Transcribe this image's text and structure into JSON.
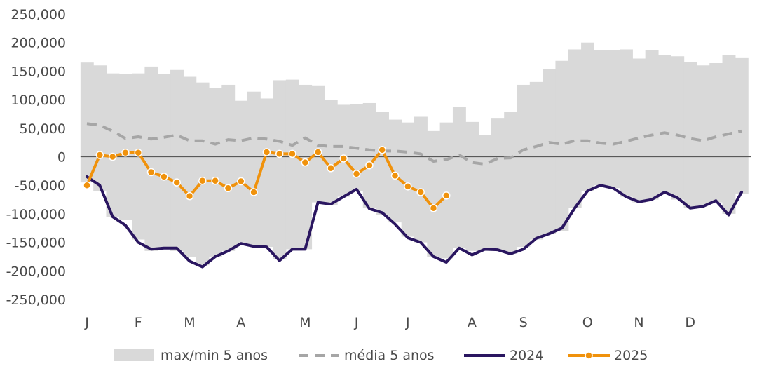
{
  "chart_data": {
    "type": "line",
    "ylim": [
      -250000,
      250000
    ],
    "yticks": [
      250000,
      200000,
      150000,
      100000,
      50000,
      0,
      -50000,
      -100000,
      -150000,
      -200000,
      -250000
    ],
    "ytick_labels": [
      "250,000",
      "200,000",
      "150,000",
      "100,000",
      "50,000",
      "0",
      "-50,000",
      "-100,000",
      "-150,000",
      "-200,000",
      "-250,000"
    ],
    "x_range": [
      1,
      52
    ],
    "x_ticks": [
      {
        "week": 1,
        "label": "J"
      },
      {
        "week": 5,
        "label": "F"
      },
      {
        "week": 9,
        "label": "M"
      },
      {
        "week": 13,
        "label": "A"
      },
      {
        "week": 18,
        "label": "M"
      },
      {
        "week": 22,
        "label": "J"
      },
      {
        "week": 26,
        "label": "J"
      },
      {
        "week": 31,
        "label": "A"
      },
      {
        "week": 35,
        "label": "S"
      },
      {
        "week": 40,
        "label": "O"
      },
      {
        "week": 44,
        "label": "N"
      },
      {
        "week": 48,
        "label": "D"
      }
    ],
    "zero_line": true,
    "legend_position": "bottom",
    "series": [
      {
        "name": "max/min 5 anos",
        "kind": "band",
        "color": "#d9d9d9",
        "max": [
          165000,
          160000,
          146000,
          145000,
          146000,
          158000,
          145000,
          152000,
          140000,
          130000,
          120000,
          126000,
          98000,
          114000,
          102000,
          134000,
          135000,
          126000,
          125000,
          100000,
          91000,
          92000,
          94000,
          78000,
          65000,
          60000,
          70000,
          45000,
          60000,
          87000,
          61000,
          38000,
          68000,
          78000,
          126000,
          131000,
          153000,
          168000,
          188000,
          200000,
          187000,
          187000,
          188000,
          172000,
          187000,
          178000,
          176000,
          166000,
          160000,
          164000,
          178000,
          174000
        ],
        "min": [
          -45000,
          -60000,
          -105000,
          -110000,
          -145000,
          -165000,
          -160000,
          -165000,
          -175000,
          -190000,
          -175000,
          -165000,
          -155000,
          -155000,
          -158000,
          -180000,
          -162000,
          -162000,
          -80000,
          -85000,
          -70000,
          -60000,
          -90000,
          -102000,
          -115000,
          -140000,
          -150000,
          -175000,
          -178000,
          -160000,
          -165000,
          -165000,
          -165000,
          -170000,
          -158000,
          -145000,
          -135000,
          -130000,
          -90000,
          -60000,
          -50000,
          -55000,
          -70000,
          -80000,
          -75000,
          -65000,
          -75000,
          -90000,
          -85000,
          -80000,
          -100000,
          -65000
        ]
      },
      {
        "name": "média 5 anos",
        "kind": "dashed",
        "color": "#a6a6a6",
        "values": [
          58000,
          55000,
          45000,
          32000,
          35000,
          31000,
          34000,
          38000,
          28000,
          28000,
          22000,
          30000,
          28000,
          33000,
          31000,
          27000,
          20000,
          33000,
          20000,
          18000,
          18000,
          15000,
          12000,
          10000,
          10000,
          8000,
          5000,
          -8000,
          -5000,
          3000,
          -10000,
          -13000,
          -3000,
          -2000,
          12000,
          18000,
          25000,
          22000,
          28000,
          28000,
          24000,
          22000,
          27000,
          33000,
          38000,
          42000,
          38000,
          32000,
          28000,
          35000,
          40000,
          45000
        ]
      },
      {
        "name": "2024",
        "kind": "line",
        "color": "#2a1660",
        "values": [
          -35000,
          -50000,
          -105000,
          -120000,
          -150000,
          -162000,
          -160000,
          -160000,
          -183000,
          -193000,
          -175000,
          -165000,
          -152000,
          -157000,
          -158000,
          -182000,
          -162000,
          -162000,
          -80000,
          -83000,
          -70000,
          -57000,
          -91000,
          -98000,
          -118000,
          -142000,
          -150000,
          -175000,
          -185000,
          -160000,
          -172000,
          -162000,
          -163000,
          -170000,
          -162000,
          -143000,
          -135000,
          -125000,
          -90000,
          -60000,
          -50000,
          -55000,
          -70000,
          -79000,
          -75000,
          -62000,
          -72000,
          -90000,
          -87000,
          -77000,
          -102000,
          -62000
        ]
      },
      {
        "name": "2025",
        "kind": "line-marker",
        "color": "#f0920c",
        "values": [
          -50000,
          3000,
          0,
          7000,
          7000,
          -27000,
          -35000,
          -45000,
          -69000,
          -42000,
          -42000,
          -55000,
          -43000,
          -62000,
          8000,
          5000,
          5000,
          -10000,
          8000,
          -20000,
          -3000,
          -30000,
          -15000,
          12000,
          -33000,
          -52000,
          -62000,
          -90000,
          -68000
        ]
      }
    ]
  }
}
